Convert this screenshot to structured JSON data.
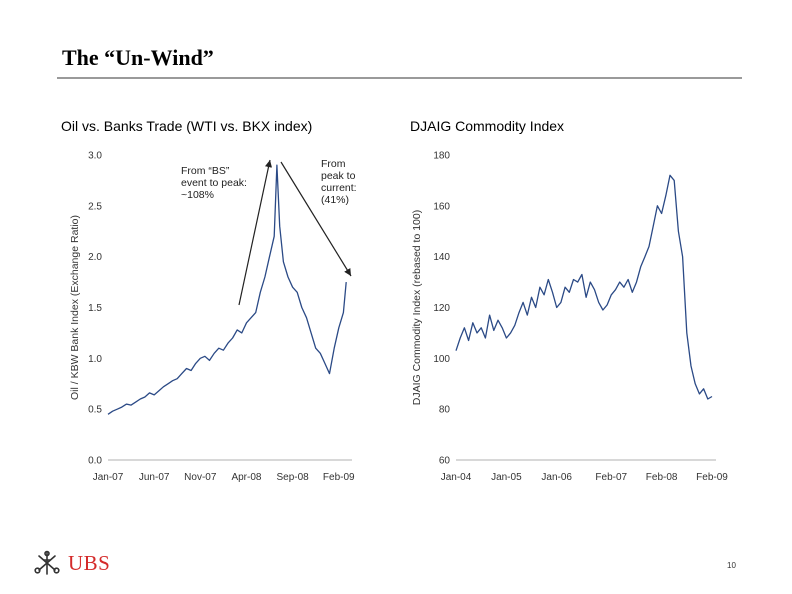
{
  "slide": {
    "title": "The “Un-Wind”",
    "page_number": "10",
    "logo_text": "UBS",
    "accent_color": "#d42a2a",
    "series_color": "#2b4a86"
  },
  "chart_data": [
    {
      "type": "line",
      "title": "Oil vs. Banks Trade (WTI vs. BKX index)",
      "ylabel": "Oil / KBW Bank Index (Exchange Ratio)",
      "xlabel": "",
      "ylim": [
        0.0,
        3.0
      ],
      "yticks": [
        "0.0",
        "0.5",
        "1.0",
        "1.5",
        "2.0",
        "2.5",
        "3.0"
      ],
      "xlim": [
        0,
        26
      ],
      "xticks": [
        {
          "label": "Jan-07",
          "x": 0
        },
        {
          "label": "Jun-07",
          "x": 5
        },
        {
          "label": "Nov-07",
          "x": 10
        },
        {
          "label": "Apr-08",
          "x": 15
        },
        {
          "label": "Sep-08",
          "x": 20
        },
        {
          "label": "Feb-09",
          "x": 25
        }
      ],
      "series": [
        {
          "name": "Oil / BKX ratio",
          "x": [
            0,
            0.5,
            1,
            1.5,
            2,
            2.5,
            3,
            3.5,
            4,
            4.5,
            5,
            5.5,
            6,
            6.5,
            7,
            7.5,
            8,
            8.5,
            9,
            9.5,
            10,
            10.5,
            11,
            11.5,
            12,
            12.5,
            13,
            13.5,
            14,
            14.5,
            15,
            15.5,
            16,
            16.5,
            17,
            17.5,
            18,
            18.3,
            18.6,
            19,
            19.5,
            20,
            20.5,
            21,
            21.5,
            22,
            22.5,
            23,
            23.5,
            24,
            24.5,
            25,
            25.5,
            25.8
          ],
          "y": [
            0.45,
            0.48,
            0.5,
            0.52,
            0.55,
            0.54,
            0.57,
            0.6,
            0.62,
            0.66,
            0.64,
            0.68,
            0.72,
            0.75,
            0.78,
            0.8,
            0.85,
            0.9,
            0.88,
            0.95,
            1.0,
            1.02,
            0.98,
            1.05,
            1.1,
            1.08,
            1.15,
            1.2,
            1.28,
            1.25,
            1.35,
            1.4,
            1.45,
            1.65,
            1.8,
            2.0,
            2.2,
            2.9,
            2.3,
            1.95,
            1.8,
            1.7,
            1.65,
            1.5,
            1.4,
            1.25,
            1.1,
            1.05,
            0.95,
            0.85,
            1.1,
            1.3,
            1.45,
            1.75
          ]
        }
      ],
      "annotations": [
        {
          "lines": [
            "From “BS”",
            "event to peak:",
            "~108%"
          ]
        },
        {
          "lines": [
            "From",
            "peak to",
            "current:",
            "(41%)"
          ]
        }
      ]
    },
    {
      "type": "line",
      "title": "DJAIG Commodity Index",
      "ylabel": "DJAIG Commodity Index (rebased to 100)",
      "xlabel": "",
      "ylim": [
        60,
        180
      ],
      "yticks": [
        "60",
        "80",
        "100",
        "120",
        "140",
        "160",
        "180"
      ],
      "xlim": [
        0,
        61
      ],
      "xticks": [
        {
          "label": "Jan-04",
          "x": 0
        },
        {
          "label": "Jan-05",
          "x": 12
        },
        {
          "label": "Jan-06",
          "x": 24
        },
        {
          "label": "Feb-07",
          "x": 37
        },
        {
          "label": "Feb-08",
          "x": 49
        },
        {
          "label": "Feb-09",
          "x": 61
        }
      ],
      "series": [
        {
          "name": "DJAIG",
          "x": [
            0,
            1,
            2,
            3,
            4,
            5,
            6,
            7,
            8,
            9,
            10,
            11,
            12,
            13,
            14,
            15,
            16,
            17,
            18,
            19,
            20,
            21,
            22,
            23,
            24,
            25,
            26,
            27,
            28,
            29,
            30,
            31,
            32,
            33,
            34,
            35,
            36,
            37,
            38,
            39,
            40,
            41,
            42,
            43,
            44,
            45,
            46,
            47,
            48,
            49,
            50,
            51,
            52,
            53,
            54,
            55,
            56,
            57,
            58,
            59,
            60,
            61
          ],
          "y": [
            103,
            108,
            112,
            107,
            114,
            110,
            112,
            108,
            117,
            111,
            115,
            112,
            108,
            110,
            113,
            118,
            122,
            117,
            124,
            120,
            128,
            125,
            131,
            126,
            120,
            122,
            128,
            126,
            131,
            130,
            133,
            124,
            130,
            127,
            122,
            119,
            121,
            125,
            127,
            130,
            128,
            131,
            126,
            130,
            136,
            140,
            144,
            152,
            160,
            157,
            164,
            172,
            170,
            150,
            140,
            110,
            97,
            90,
            86,
            88,
            84,
            85
          ]
        }
      ]
    }
  ]
}
